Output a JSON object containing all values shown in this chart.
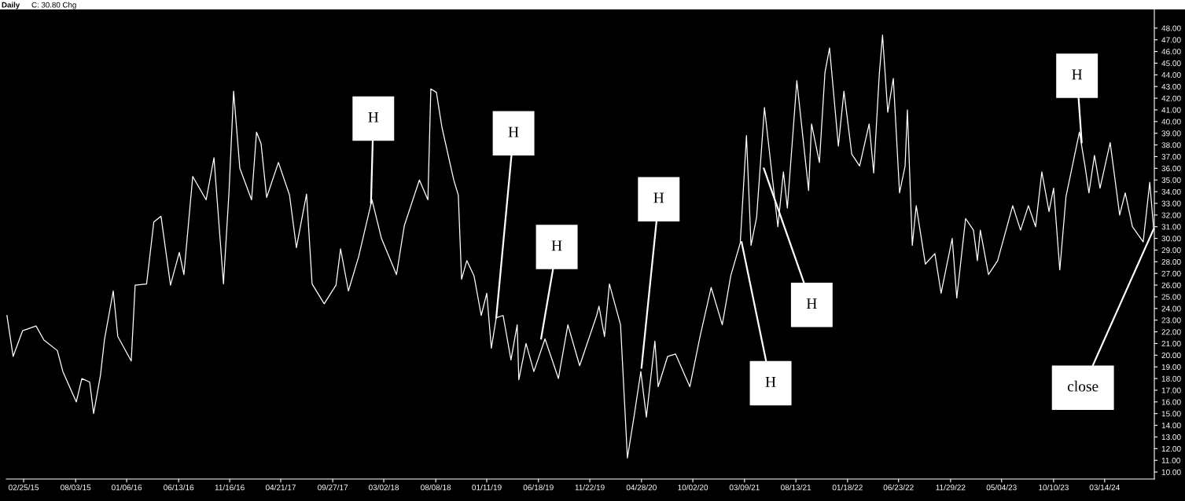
{
  "chart_data": {
    "type": "line",
    "title": "Daily",
    "subtitle": "C: 30.80 Chg",
    "x": [
      "2015-01-05",
      "2015-01-24",
      "2015-02-22",
      "2015-04-04",
      "2015-04-28",
      "2015-06-08",
      "2015-06-25",
      "2015-08-05",
      "2015-08-22",
      "2015-09-15",
      "2015-09-27",
      "2015-10-18",
      "2015-10-30",
      "2015-11-26",
      "2015-12-10",
      "2016-01-20",
      "2016-02-01",
      "2016-03-07",
      "2016-03-29",
      "2016-04-20",
      "2016-05-19",
      "2016-06-15",
      "2016-06-29",
      "2016-07-26",
      "2016-09-05",
      "2016-09-29",
      "2016-10-28",
      "2016-11-14",
      "2016-11-28",
      "2016-12-17",
      "2017-01-22",
      "2017-02-06",
      "2017-02-20",
      "2017-03-09",
      "2017-04-14",
      "2017-05-18",
      "2017-06-08",
      "2017-07-09",
      "2017-07-26",
      "2017-09-01",
      "2017-10-07",
      "2017-10-21",
      "2017-11-14",
      "2017-12-15",
      "2018-01-25",
      "2018-02-23",
      "2018-04-10",
      "2018-05-04",
      "2018-06-19",
      "2018-07-15",
      "2018-07-24",
      "2018-08-10",
      "2018-08-27",
      "2018-10-02",
      "2018-10-16",
      "2018-10-26",
      "2018-11-11",
      "2018-12-03",
      "2018-12-25",
      "2019-01-11",
      "2019-01-25",
      "2019-02-09",
      "2019-03-02",
      "2019-03-26",
      "2019-04-14",
      "2019-04-19",
      "2019-05-11",
      "2019-06-04",
      "2019-07-08",
      "2019-08-18",
      "2019-09-16",
      "2019-10-22",
      "2019-12-13",
      "2019-12-20",
      "2020-01-06",
      "2020-01-21",
      "2020-02-24",
      "2020-03-16",
      "2020-04-05",
      "2020-04-26",
      "2020-05-13",
      "2020-06-08",
      "2020-06-18",
      "2020-07-17",
      "2020-08-10",
      "2020-09-23",
      "2020-10-24",
      "2020-11-27",
      "2020-12-31",
      "2021-01-26",
      "2021-02-24",
      "2021-03-15",
      "2021-03-29",
      "2021-04-15",
      "2021-05-09",
      "2021-06-19",
      "2021-07-06",
      "2021-07-18",
      "2021-08-16",
      "2021-09-21",
      "2021-09-30",
      "2021-10-24",
      "2021-11-10",
      "2021-11-24",
      "2021-12-21",
      "2022-01-07",
      "2022-01-31",
      "2022-02-24",
      "2022-03-25",
      "2022-04-08",
      "2022-04-25",
      "2022-05-05",
      "2022-05-21",
      "2022-06-07",
      "2022-06-26",
      "2022-07-13",
      "2022-07-20",
      "2022-08-04",
      "2022-08-16",
      "2022-09-13",
      "2022-10-12",
      "2022-10-31",
      "2022-12-04",
      "2022-12-18",
      "2023-01-14",
      "2023-02-07",
      "2023-02-19",
      "2023-02-28",
      "2023-03-25",
      "2023-04-22",
      "2023-06-07",
      "2023-07-01",
      "2023-07-25",
      "2023-08-16",
      "2023-09-04",
      "2023-09-26",
      "2023-10-10",
      "2023-10-29",
      "2023-11-17",
      "2023-12-28",
      "2024-01-14",
      "2024-01-26",
      "2024-02-12",
      "2024-02-29",
      "2024-03-31",
      "2024-04-29",
      "2024-05-16",
      "2024-06-07",
      "2024-07-10",
      "2024-07-30",
      "2024-08-11"
    ],
    "series": [
      {
        "color": "#ffffff",
        "values": [
          23.4,
          19.9,
          22.1,
          22.5,
          21.3,
          20.4,
          18.6,
          16.0,
          18.0,
          17.7,
          15.0,
          18.3,
          21.3,
          25.5,
          21.6,
          19.5,
          26.0,
          26.1,
          31.4,
          31.9,
          26.0,
          28.8,
          26.9,
          35.3,
          33.3,
          36.9,
          26.1,
          34.0,
          42.6,
          36.0,
          33.3,
          39.1,
          38.1,
          33.5,
          36.5,
          33.7,
          29.2,
          33.8,
          26.1,
          24.4,
          26.0,
          29.1,
          25.5,
          28.4,
          33.3,
          30.0,
          26.9,
          31.1,
          35.0,
          33.3,
          42.8,
          42.5,
          39.5,
          35.0,
          33.7,
          26.5,
          28.1,
          26.8,
          23.4,
          25.3,
          20.6,
          23.2,
          23.4,
          19.6,
          22.6,
          17.9,
          21.0,
          18.6,
          21.4,
          18.0,
          22.6,
          19.1,
          23.4,
          24.2,
          21.6,
          26.1,
          22.6,
          11.2,
          14.7,
          18.6,
          14.7,
          21.2,
          17.3,
          19.9,
          20.1,
          17.3,
          21.6,
          25.8,
          22.6,
          26.8,
          29.6,
          38.8,
          29.4,
          31.8,
          41.2,
          31.0,
          35.7,
          32.6,
          43.5,
          34.1,
          39.8,
          36.5,
          44.2,
          46.3,
          37.9,
          42.6,
          37.2,
          36.2,
          39.8,
          35.6,
          44.0,
          47.4,
          40.8,
          43.7,
          33.9,
          36.2,
          41.0,
          29.4,
          32.8,
          27.8,
          28.7,
          25.3,
          30.0,
          24.9,
          31.7,
          30.7,
          28.1,
          30.7,
          26.9,
          28.1,
          32.8,
          30.7,
          32.8,
          31.0,
          35.7,
          32.3,
          34.3,
          27.3,
          33.6,
          39.1,
          36.2,
          33.9,
          37.1,
          34.3,
          38.2,
          32.0,
          33.9,
          31.0,
          29.7,
          34.8,
          30.8
        ]
      }
    ],
    "annotations": [
      {
        "text": "H",
        "x": "2018-01-22",
        "y": 33.0
      },
      {
        "text": "H",
        "x": "2019-02-09",
        "y": 23.2
      },
      {
        "text": "H",
        "x": "2019-06-26",
        "y": 21.4
      },
      {
        "text": "H",
        "x": "2020-04-28",
        "y": 18.9
      },
      {
        "text": "H",
        "x": "2021-02-28",
        "y": 29.7
      },
      {
        "text": "H",
        "x": "2021-05-07",
        "y": 36.0
      },
      {
        "text": "H",
        "x": "2024-01-04",
        "y": 38.2
      },
      {
        "text": "close",
        "x": "2024-08-11",
        "y": 30.8
      }
    ],
    "xlim": [
      "2015-01-03",
      "2024-08-13"
    ],
    "xticks": [
      {
        "value": "2015-02-25",
        "label": "02/25/15"
      },
      {
        "value": "2015-08-03",
        "label": "08/03/15"
      },
      {
        "value": "2016-01-06",
        "label": "01/06/16"
      },
      {
        "value": "2016-06-13",
        "label": "06/13/16"
      },
      {
        "value": "2016-11-16",
        "label": "11/16/16"
      },
      {
        "value": "2017-04-21",
        "label": "04/21/17"
      },
      {
        "value": "2017-09-27",
        "label": "09/27/17"
      },
      {
        "value": "2018-03-02",
        "label": "03/02/18"
      },
      {
        "value": "2018-08-08",
        "label": "08/08/18"
      },
      {
        "value": "2019-01-11",
        "label": "01/11/19"
      },
      {
        "value": "2019-06-18",
        "label": "06/18/19"
      },
      {
        "value": "2019-11-22",
        "label": "11/22/19"
      },
      {
        "value": "2020-04-28",
        "label": "04/28/20"
      },
      {
        "value": "2020-10-02",
        "label": "10/02/20"
      },
      {
        "value": "2021-03-09",
        "label": "03/09/21"
      },
      {
        "value": "2021-08-13",
        "label": "08/13/21"
      },
      {
        "value": "2022-01-18",
        "label": "01/18/22"
      },
      {
        "value": "2022-06-23",
        "label": "06/23/22"
      },
      {
        "value": "2022-11-29",
        "label": "11/29/22"
      },
      {
        "value": "2023-05-04",
        "label": "05/04/23"
      },
      {
        "value": "2023-10-10",
        "label": "10/10/23"
      },
      {
        "value": "2024-03-14",
        "label": "03/14/24"
      }
    ],
    "ylim": [
      9.4,
      49.6
    ],
    "yticks": [
      {
        "value": 10,
        "label": "10.00"
      },
      {
        "value": 11,
        "label": "11.00"
      },
      {
        "value": 12,
        "label": "12.00"
      },
      {
        "value": 13,
        "label": "13.00"
      },
      {
        "value": 14,
        "label": "14.00"
      },
      {
        "value": 15,
        "label": "15.00"
      },
      {
        "value": 16,
        "label": "16.00"
      },
      {
        "value": 17,
        "label": "17.00"
      },
      {
        "value": 18,
        "label": "18.00"
      },
      {
        "value": 19,
        "label": "19.00"
      },
      {
        "value": 20,
        "label": "20.00"
      },
      {
        "value": 21,
        "label": "21.00"
      },
      {
        "value": 22,
        "label": "22.00"
      },
      {
        "value": 23,
        "label": "23.00"
      },
      {
        "value": 24,
        "label": "24.00"
      },
      {
        "value": 25,
        "label": "25.00"
      },
      {
        "value": 26,
        "label": "26.00"
      },
      {
        "value": 27,
        "label": "27.00"
      },
      {
        "value": 28,
        "label": "28.00"
      },
      {
        "value": 29,
        "label": "29.00"
      },
      {
        "value": 30,
        "label": "30.00"
      },
      {
        "value": 31,
        "label": "31.00"
      },
      {
        "value": 32,
        "label": "32.00"
      },
      {
        "value": 33,
        "label": "33.00"
      },
      {
        "value": 34,
        "label": "34.00"
      },
      {
        "value": 35,
        "label": "35.00"
      },
      {
        "value": 36,
        "label": "36.00"
      },
      {
        "value": 37,
        "label": "37.00"
      },
      {
        "value": 38,
        "label": "38.00"
      },
      {
        "value": 39,
        "label": "39.00"
      },
      {
        "value": 40,
        "label": "40.00"
      },
      {
        "value": 41,
        "label": "41.00"
      },
      {
        "value": 42,
        "label": "42.00"
      },
      {
        "value": 43,
        "label": "43.00"
      },
      {
        "value": 44,
        "label": "44.00"
      },
      {
        "value": 45,
        "label": "45.00"
      },
      {
        "value": 46,
        "label": "46.00"
      },
      {
        "value": 47,
        "label": "47.00"
      },
      {
        "value": 48,
        "label": "48.00"
      }
    ],
    "grid": false,
    "marker": "none",
    "line_style": "solid"
  }
}
